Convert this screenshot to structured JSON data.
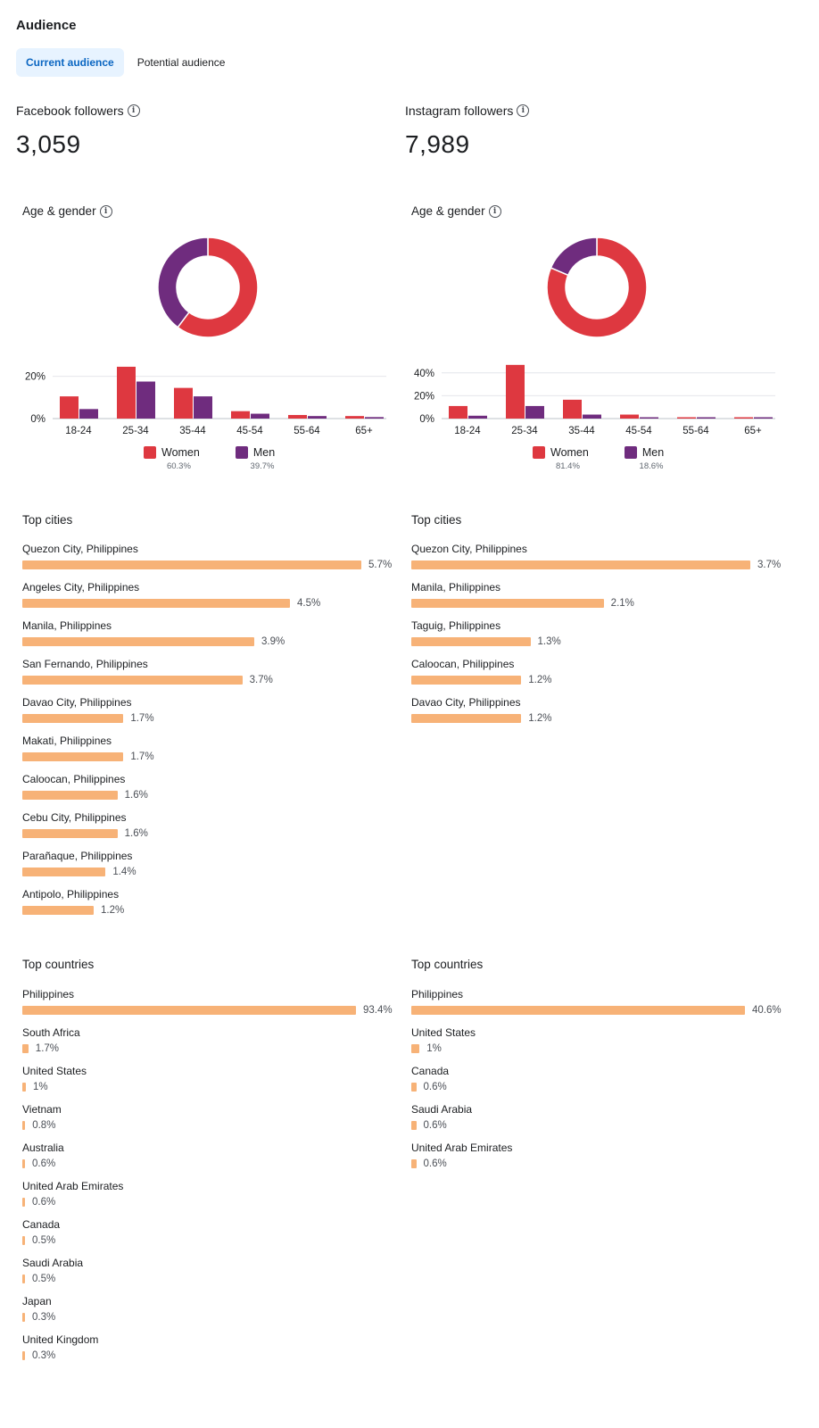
{
  "header": {
    "title": "Audience"
  },
  "tabs": [
    {
      "label": "Current audience",
      "active": true
    },
    {
      "label": "Potential audience",
      "active": false
    }
  ],
  "metrics": {
    "facebook": {
      "label": "Facebook followers",
      "value": "3,059"
    },
    "instagram": {
      "label": "Instagram followers",
      "value": "7,989"
    }
  },
  "colors": {
    "women": "#de3840",
    "men": "#6f2c7e",
    "bar": "#f7b277",
    "grid": "#e4e6eb"
  },
  "facebook": {
    "age_gender_title": "Age & gender",
    "top_cities_title": "Top cities",
    "top_countries_title": "Top countries",
    "legend": {
      "women": "Women",
      "women_pct": "60.3%",
      "men": "Men",
      "men_pct": "39.7%"
    },
    "chart_data": {
      "type": "bar",
      "title": "Age & gender",
      "categories": [
        "18-24",
        "25-34",
        "35-44",
        "45-54",
        "55-64",
        "65+"
      ],
      "series": [
        {
          "name": "Women",
          "values": [
            10.5,
            24.5,
            14.5,
            3.5,
            1.7,
            1.2
          ]
        },
        {
          "name": "Men",
          "values": [
            4.5,
            17.5,
            10.5,
            2.3,
            1.2,
            0.7
          ]
        }
      ],
      "yticks": [
        0,
        20
      ],
      "ytick_labels": [
        "0%",
        "20%"
      ],
      "ylim": [
        0,
        27
      ],
      "donut": [
        {
          "name": "Women",
          "value": 60.3
        },
        {
          "name": "Men",
          "value": 39.7
        }
      ]
    },
    "cities": [
      {
        "name": "Quezon City, Philippines",
        "pct": "5.7%",
        "value": 5.7
      },
      {
        "name": "Angeles City, Philippines",
        "pct": "4.5%",
        "value": 4.5
      },
      {
        "name": "Manila, Philippines",
        "pct": "3.9%",
        "value": 3.9
      },
      {
        "name": "San Fernando, Philippines",
        "pct": "3.7%",
        "value": 3.7
      },
      {
        "name": "Davao City, Philippines",
        "pct": "1.7%",
        "value": 1.7
      },
      {
        "name": "Makati, Philippines",
        "pct": "1.7%",
        "value": 1.7
      },
      {
        "name": "Caloocan, Philippines",
        "pct": "1.6%",
        "value": 1.6
      },
      {
        "name": "Cebu City, Philippines",
        "pct": "1.6%",
        "value": 1.6
      },
      {
        "name": "Parañaque, Philippines",
        "pct": "1.4%",
        "value": 1.4
      },
      {
        "name": "Antipolo, Philippines",
        "pct": "1.2%",
        "value": 1.2
      }
    ],
    "countries": [
      {
        "name": "Philippines",
        "pct": "93.4%",
        "value": 93.4
      },
      {
        "name": "South Africa",
        "pct": "1.7%",
        "value": 1.7
      },
      {
        "name": "United States",
        "pct": "1%",
        "value": 1.0
      },
      {
        "name": "Vietnam",
        "pct": "0.8%",
        "value": 0.8
      },
      {
        "name": "Australia",
        "pct": "0.6%",
        "value": 0.6
      },
      {
        "name": "United Arab Emirates",
        "pct": "0.6%",
        "value": 0.6
      },
      {
        "name": "Canada",
        "pct": "0.5%",
        "value": 0.5
      },
      {
        "name": "Saudi Arabia",
        "pct": "0.5%",
        "value": 0.5
      },
      {
        "name": "Japan",
        "pct": "0.3%",
        "value": 0.3
      },
      {
        "name": "United Kingdom",
        "pct": "0.3%",
        "value": 0.3
      }
    ]
  },
  "instagram": {
    "age_gender_title": "Age & gender",
    "top_cities_title": "Top cities",
    "top_countries_title": "Top countries",
    "legend": {
      "women": "Women",
      "women_pct": "81.4%",
      "men": "Men",
      "men_pct": "18.6%"
    },
    "chart_data": {
      "type": "bar",
      "title": "Age & gender",
      "categories": [
        "18-24",
        "25-34",
        "35-44",
        "45-54",
        "55-64",
        "65+"
      ],
      "series": [
        {
          "name": "Women",
          "values": [
            11,
            47,
            16.5,
            3.5,
            1,
            0.5
          ]
        },
        {
          "name": "Men",
          "values": [
            2.5,
            11,
            3.5,
            1,
            0.5,
            0.3
          ]
        }
      ],
      "yticks": [
        0,
        20,
        40
      ],
      "ytick_labels": [
        "0%",
        "20%",
        "40%"
      ],
      "ylim": [
        0,
        50
      ],
      "donut": [
        {
          "name": "Women",
          "value": 81.4
        },
        {
          "name": "Men",
          "value": 18.6
        }
      ]
    },
    "cities": [
      {
        "name": "Quezon City, Philippines",
        "pct": "3.7%",
        "value": 3.7
      },
      {
        "name": "Manila, Philippines",
        "pct": "2.1%",
        "value": 2.1
      },
      {
        "name": "Taguig, Philippines",
        "pct": "1.3%",
        "value": 1.3
      },
      {
        "name": "Caloocan, Philippines",
        "pct": "1.2%",
        "value": 1.2
      },
      {
        "name": "Davao City, Philippines",
        "pct": "1.2%",
        "value": 1.2
      }
    ],
    "countries": [
      {
        "name": "Philippines",
        "pct": "40.6%",
        "value": 40.6
      },
      {
        "name": "United States",
        "pct": "1%",
        "value": 1.0
      },
      {
        "name": "Canada",
        "pct": "0.6%",
        "value": 0.6
      },
      {
        "name": "Saudi Arabia",
        "pct": "0.6%",
        "value": 0.6
      },
      {
        "name": "United Arab Emirates",
        "pct": "0.6%",
        "value": 0.6
      }
    ]
  }
}
